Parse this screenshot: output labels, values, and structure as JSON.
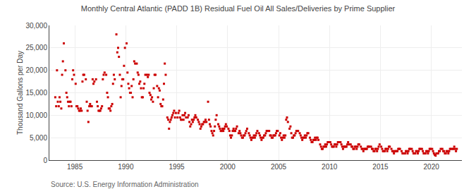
{
  "chart_data": {
    "type": "scatter",
    "title": "Monthly Central Atlantic (PADD 1B) Residual Fuel Oil All Sales/Deliveries by Prime Supplier",
    "ylabel": "Thousand Gallons per Day",
    "annotations": [
      "Source: U.S. Energy Information Administration"
    ],
    "color": "#cc0000",
    "marker": "square",
    "grid": true,
    "xlim": [
      1982.5,
      2023.0
    ],
    "xticks": [
      1985,
      1990,
      1995,
      2000,
      2005,
      2010,
      2015,
      2020
    ],
    "ylim": [
      0,
      30000
    ],
    "yticks": [
      0,
      {
        "value": 5000,
        "label": "5,000"
      },
      {
        "value": 10000,
        "label": "10,000"
      },
      {
        "value": 15000,
        "label": "15,000"
      },
      {
        "value": 20000,
        "label": "20,000"
      },
      {
        "value": 25000,
        "label": "25,000"
      },
      {
        "value": 30000,
        "label": "30,000"
      }
    ],
    "x": [
      1983.08,
      1983.17,
      1983.25,
      1983.33,
      1983.42,
      1983.5,
      1983.58,
      1983.67,
      1983.75,
      1983.83,
      1983.92,
      1984.08,
      1984.17,
      1984.25,
      1984.33,
      1984.42,
      1984.5,
      1984.58,
      1984.67,
      1984.75,
      1984.83,
      1984.92,
      1985.08,
      1985.17,
      1985.25,
      1985.33,
      1985.42,
      1985.5,
      1985.58,
      1985.67,
      1985.75,
      1985.83,
      1985.92,
      1986.08,
      1986.17,
      1986.25,
      1986.33,
      1986.42,
      1986.5,
      1986.58,
      1986.67,
      1986.75,
      1986.83,
      1986.92,
      1987.08,
      1987.17,
      1987.25,
      1987.33,
      1987.42,
      1987.5,
      1987.58,
      1987.67,
      1987.75,
      1987.83,
      1987.92,
      1988.08,
      1988.17,
      1988.25,
      1988.33,
      1988.42,
      1988.5,
      1988.58,
      1988.67,
      1988.75,
      1988.83,
      1988.92,
      1989.08,
      1989.17,
      1989.25,
      1989.33,
      1989.42,
      1989.5,
      1989.58,
      1989.67,
      1989.75,
      1989.83,
      1989.92,
      1990.08,
      1990.17,
      1990.25,
      1990.33,
      1990.42,
      1990.5,
      1990.58,
      1990.67,
      1990.75,
      1990.83,
      1990.92,
      1991.08,
      1991.17,
      1991.25,
      1991.33,
      1991.42,
      1991.5,
      1991.58,
      1991.67,
      1991.75,
      1991.83,
      1991.92,
      1992.08,
      1992.17,
      1992.25,
      1992.33,
      1992.42,
      1992.5,
      1992.58,
      1992.67,
      1992.75,
      1992.83,
      1992.92,
      1993.08,
      1993.17,
      1993.25,
      1993.33,
      1993.42,
      1993.5,
      1993.58,
      1993.67,
      1993.75,
      1993.83,
      1993.92,
      1994.08,
      1994.17,
      1994.25,
      1994.33,
      1994.42,
      1994.5,
      1994.58,
      1994.67,
      1994.75,
      1994.83,
      1994.92,
      1995.08,
      1995.17,
      1995.25,
      1995.33,
      1995.42,
      1995.5,
      1995.58,
      1995.67,
      1995.75,
      1995.83,
      1995.92,
      1996.08,
      1996.17,
      1996.25,
      1996.33,
      1996.42,
      1996.5,
      1996.58,
      1996.67,
      1996.75,
      1996.83,
      1996.92,
      1997.08,
      1997.17,
      1997.25,
      1997.33,
      1997.42,
      1997.5,
      1997.58,
      1997.67,
      1997.75,
      1997.83,
      1997.92,
      1998.08,
      1998.17,
      1998.25,
      1998.33,
      1998.42,
      1998.5,
      1998.58,
      1998.67,
      1998.75,
      1998.83,
      1998.92,
      1999.08,
      1999.17,
      1999.25,
      1999.33,
      1999.42,
      1999.5,
      1999.58,
      1999.67,
      1999.75,
      1999.83,
      1999.92,
      2000.08,
      2000.17,
      2000.25,
      2000.33,
      2000.42,
      2000.5,
      2000.58,
      2000.67,
      2000.75,
      2000.83,
      2000.92,
      2001.08,
      2001.17,
      2001.25,
      2001.33,
      2001.42,
      2001.5,
      2001.58,
      2001.67,
      2001.75,
      2001.83,
      2001.92,
      2002.08,
      2002.17,
      2002.25,
      2002.33,
      2002.42,
      2002.5,
      2002.58,
      2002.67,
      2002.75,
      2002.83,
      2002.92,
      2003.08,
      2003.17,
      2003.25,
      2003.33,
      2003.42,
      2003.5,
      2003.58,
      2003.67,
      2003.75,
      2003.83,
      2003.92,
      2004.08,
      2004.17,
      2004.25,
      2004.33,
      2004.42,
      2004.5,
      2004.58,
      2004.67,
      2004.75,
      2004.83,
      2004.92,
      2005.08,
      2005.17,
      2005.25,
      2005.33,
      2005.42,
      2005.5,
      2005.58,
      2005.67,
      2005.75,
      2005.83,
      2005.92,
      2006.08,
      2006.17,
      2006.25,
      2006.33,
      2006.42,
      2006.5,
      2006.58,
      2006.67,
      2006.75,
      2006.83,
      2006.92,
      2007.08,
      2007.17,
      2007.25,
      2007.33,
      2007.42,
      2007.5,
      2007.58,
      2007.67,
      2007.75,
      2007.83,
      2007.92,
      2008.08,
      2008.17,
      2008.25,
      2008.33,
      2008.42,
      2008.5,
      2008.58,
      2008.67,
      2008.75,
      2008.83,
      2008.92,
      2009.08,
      2009.17,
      2009.25,
      2009.33,
      2009.42,
      2009.5,
      2009.58,
      2009.67,
      2009.75,
      2009.83,
      2009.92,
      2010.08,
      2010.17,
      2010.25,
      2010.33,
      2010.42,
      2010.5,
      2010.58,
      2010.67,
      2010.75,
      2010.83,
      2010.92,
      2011.08,
      2011.17,
      2011.25,
      2011.33,
      2011.42,
      2011.5,
      2011.58,
      2011.67,
      2011.75,
      2011.83,
      2011.92,
      2012.08,
      2012.17,
      2012.25,
      2012.33,
      2012.42,
      2012.5,
      2012.58,
      2012.67,
      2012.75,
      2012.83,
      2012.92,
      2013.08,
      2013.17,
      2013.25,
      2013.33,
      2013.42,
      2013.5,
      2013.58,
      2013.67,
      2013.75,
      2013.83,
      2013.92,
      2014.08,
      2014.17,
      2014.25,
      2014.33,
      2014.42,
      2014.5,
      2014.58,
      2014.67,
      2014.75,
      2014.83,
      2014.92,
      2015.08,
      2015.17,
      2015.25,
      2015.33,
      2015.42,
      2015.5,
      2015.58,
      2015.67,
      2015.75,
      2015.83,
      2015.92,
      2016.08,
      2016.17,
      2016.25,
      2016.33,
      2016.42,
      2016.5,
      2016.58,
      2016.67,
      2016.75,
      2016.83,
      2016.92,
      2017.08,
      2017.17,
      2017.25,
      2017.33,
      2017.42,
      2017.5,
      2017.58,
      2017.67,
      2017.75,
      2017.83,
      2017.92,
      2018.08,
      2018.17,
      2018.25,
      2018.33,
      2018.42,
      2018.5,
      2018.58,
      2018.67,
      2018.75,
      2018.83,
      2018.92,
      2019.08,
      2019.17,
      2019.25,
      2019.33,
      2019.42,
      2019.5,
      2019.58,
      2019.67,
      2019.75,
      2019.83,
      2019.92,
      2020.08,
      2020.17,
      2020.25,
      2020.33,
      2020.42,
      2020.5,
      2020.58,
      2020.67,
      2020.75,
      2020.83,
      2020.92,
      2021.08,
      2021.17,
      2021.25,
      2021.33,
      2021.42,
      2021.5,
      2021.58,
      2021.67,
      2021.75,
      2021.83,
      2021.92,
      2022.08,
      2022.17,
      2022.25,
      2022.33,
      2022.42,
      2022.5
    ],
    "values": [
      14000,
      12000,
      20000,
      13000,
      12000,
      14000,
      13000,
      11500,
      19000,
      22000,
      26000,
      20000,
      15000,
      14000,
      13000,
      12000,
      13000,
      13000,
      12000,
      18000,
      20000,
      19000,
      17000,
      12000,
      12000,
      11500,
      11000,
      11000,
      11500,
      11000,
      17500,
      19000,
      19000,
      18000,
      13000,
      11000,
      8500,
      12000,
      12500,
      12000,
      12000,
      18000,
      17000,
      17500,
      18000,
      13000,
      12000,
      11000,
      11000,
      11000,
      11500,
      12000,
      18000,
      19000,
      19500,
      19000,
      15000,
      14000,
      11500,
      11500,
      11000,
      12000,
      12500,
      17000,
      19000,
      18000,
      28000,
      24000,
      25000,
      23000,
      19000,
      14000,
      16500,
      18000,
      18000,
      21000,
      25000,
      26000,
      19500,
      17000,
      16000,
      15000,
      15000,
      16500,
      14000,
      18000,
      22000,
      21500,
      21500,
      19500,
      19000,
      17000,
      17500,
      16000,
      14000,
      14000,
      16000,
      17000,
      19000,
      19000,
      18500,
      19000,
      15000,
      14500,
      13500,
      14000,
      13000,
      16000,
      19000,
      19000,
      16500,
      14000,
      16000,
      15500,
      12500,
      12000,
      12000,
      13500,
      17000,
      21500,
      19000,
      9500,
      9000,
      7000,
      8500,
      9000,
      9500,
      10000,
      10500,
      11000,
      9500,
      10500,
      9500,
      10500,
      11000,
      9500,
      9000,
      9000,
      10000,
      9000,
      10000,
      10500,
      9500,
      9500,
      10000,
      8500,
      7500,
      8000,
      9000,
      8500,
      9000,
      9500,
      10000,
      9500,
      9000,
      8500,
      8000,
      7000,
      7500,
      8000,
      8000,
      8500,
      8500,
      9000,
      8500,
      13000,
      9000,
      8000,
      7500,
      6500,
      6000,
      5500,
      6500,
      7500,
      9000,
      10000,
      8000,
      7500,
      7000,
      6500,
      6500,
      7000,
      6500,
      7000,
      7500,
      8000,
      7500,
      7000,
      6500,
      5500,
      5000,
      5500,
      6500,
      7000,
      6500,
      6500,
      7000,
      7500,
      6000,
      6500,
      6000,
      5500,
      5000,
      5000,
      5500,
      5500,
      6000,
      6500,
      7000,
      6000,
      5500,
      5000,
      4500,
      5000,
      5000,
      5500,
      5000,
      5500,
      6000,
      6500,
      6000,
      5500,
      5000,
      4500,
      5000,
      5000,
      5500,
      5500,
      6000,
      6500,
      6500,
      6500,
      5500,
      5500,
      5000,
      5000,
      5500,
      5500,
      5500,
      6000,
      6500,
      6500,
      5500,
      6000,
      5000,
      4500,
      5000,
      5500,
      5000,
      5500,
      9000,
      9500,
      8500,
      7000,
      7500,
      6000,
      5000,
      5000,
      5500,
      5500,
      6000,
      6500,
      6500,
      6500,
      6000,
      5500,
      5000,
      4500,
      5000,
      5000,
      5500,
      5000,
      5500,
      6000,
      6000,
      5000,
      4500,
      4000,
      4000,
      4500,
      4500,
      5000,
      4500,
      5000,
      5000,
      4500,
      3500,
      3000,
      2500,
      2500,
      3000,
      3000,
      3500,
      3000,
      3500,
      4000,
      4000,
      4000,
      3500,
      3000,
      3000,
      3000,
      3500,
      3500,
      3000,
      3500,
      4000,
      4000,
      4000,
      3500,
      3000,
      2500,
      3000,
      3000,
      3000,
      3000,
      3500,
      4000,
      3500,
      3500,
      3000,
      3000,
      2500,
      2500,
      3000,
      3000,
      2500,
      3000,
      3500,
      3500,
      3000,
      2500,
      2500,
      2000,
      2500,
      2500,
      2500,
      2500,
      3000,
      3000,
      3000,
      3000,
      2500,
      2500,
      2000,
      2000,
      2500,
      2500,
      2000,
      2500,
      3000,
      3500,
      3000,
      2500,
      2000,
      2000,
      2000,
      2500,
      2500,
      2000,
      2500,
      3000,
      3000,
      2500,
      2000,
      2000,
      1500,
      2000,
      2000,
      2000,
      2000,
      2500,
      2500,
      2500,
      2000,
      1500,
      1500,
      1500,
      1500,
      2000,
      2000,
      1500,
      2000,
      2500,
      2500,
      2500,
      2000,
      1500,
      1500,
      1500,
      2000,
      2000,
      1500,
      2000,
      2500,
      2500,
      2500,
      2000,
      1500,
      1500,
      1500,
      2000,
      2000,
      1500,
      2000,
      2500,
      2500,
      2500,
      2000,
      1500,
      1200,
      1000,
      1500,
      1500,
      1500,
      2000,
      2000,
      2500,
      2500,
      2000,
      2000,
      1500,
      1500,
      2000,
      2000,
      1500,
      2000,
      2500,
      2500,
      2500,
      2500,
      3000,
      2500,
      2000,
      2500
    ]
  }
}
